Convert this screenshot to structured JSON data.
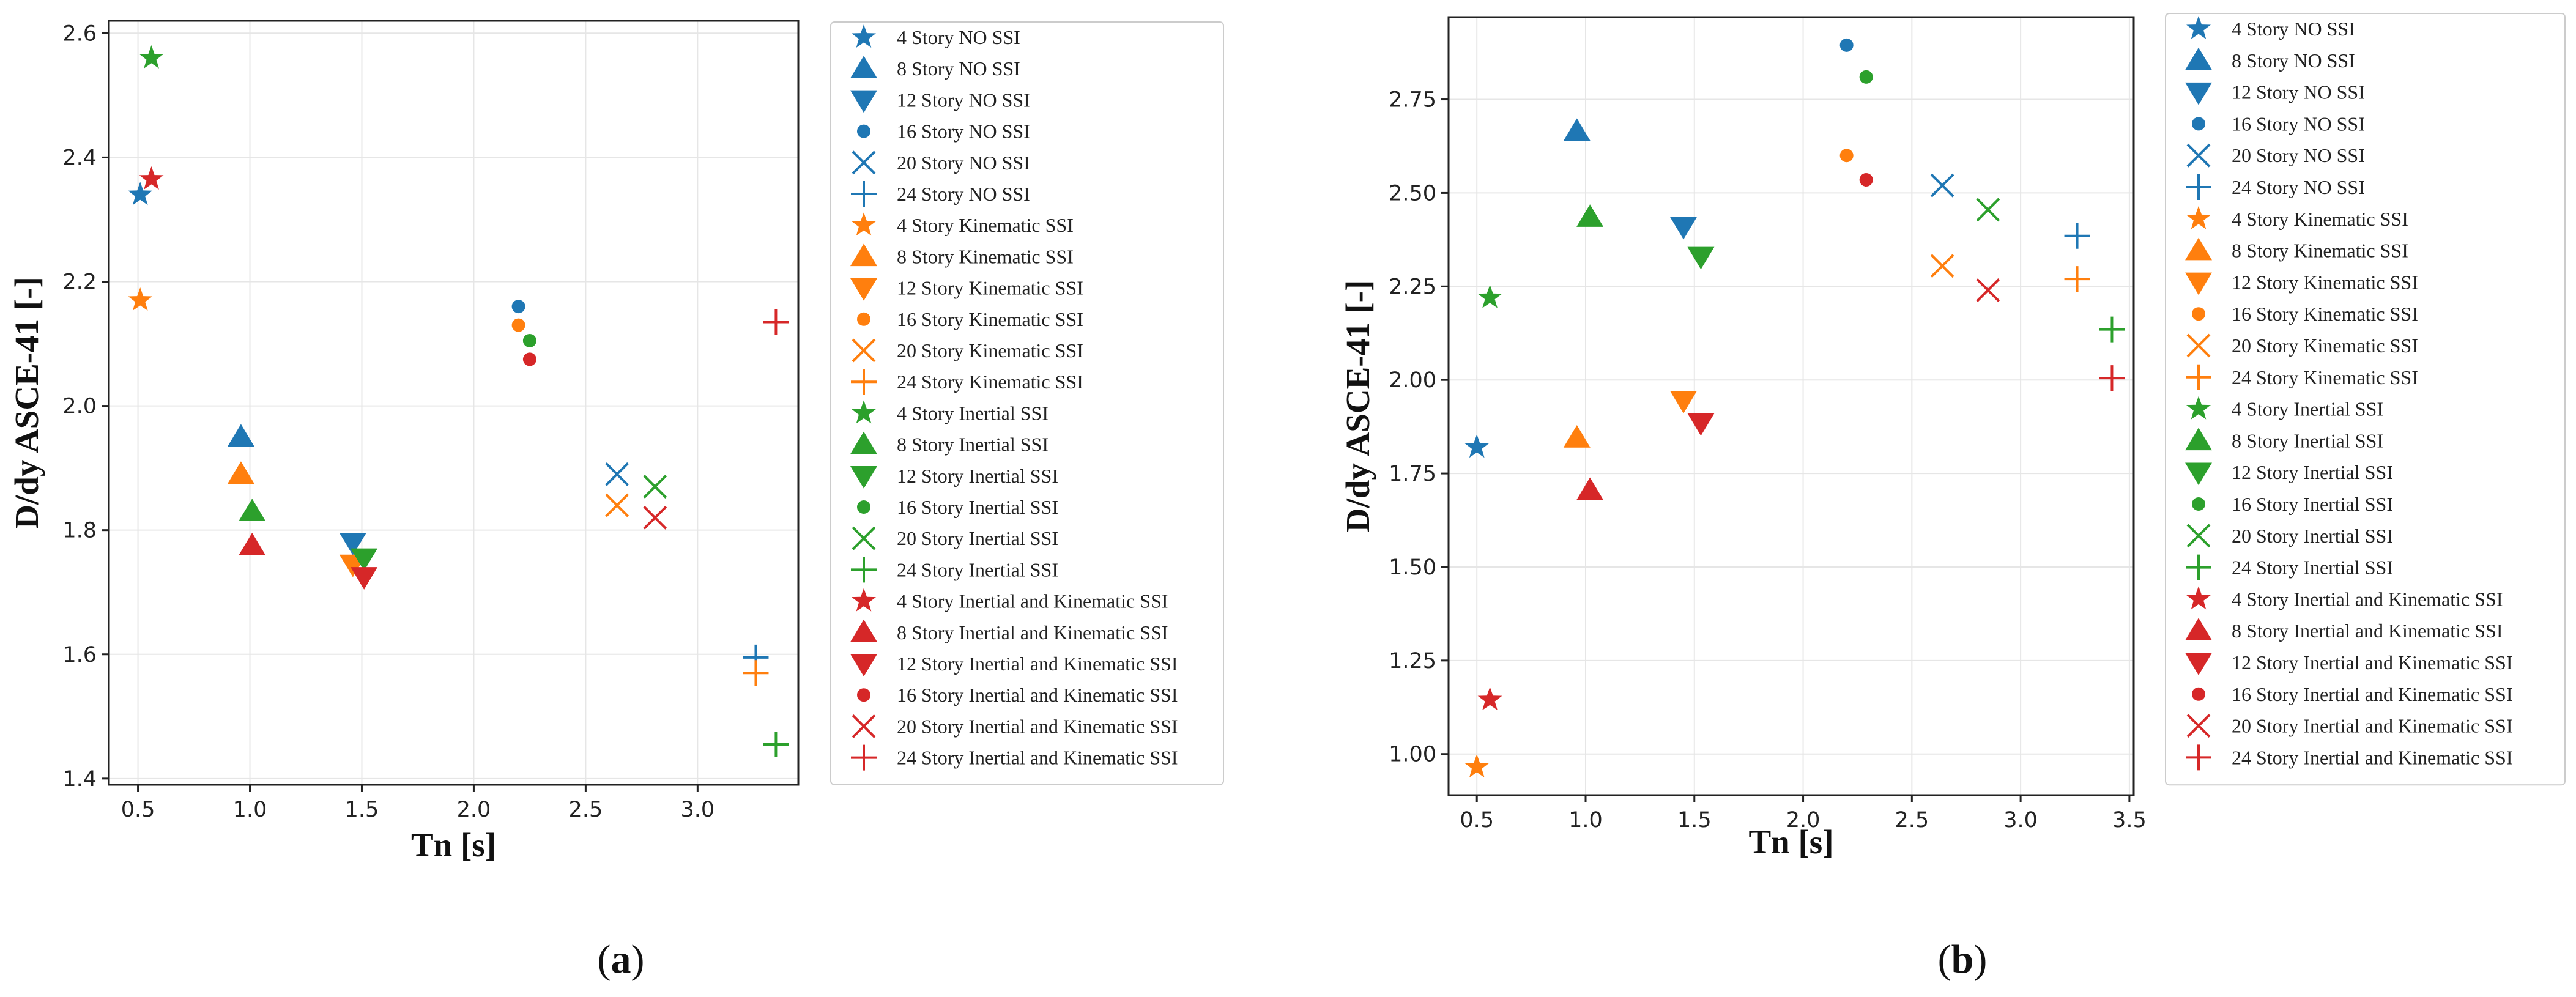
{
  "colors": {
    "no_ssi": "#1f77b4",
    "kinematic_ssi": "#ff7f0e",
    "inertial_ssi": "#2ca02c",
    "inertial_kinematic_ssi": "#d62728"
  },
  "chart_data": [
    {
      "type": "scatter",
      "panel": "a",
      "caption_label": "a",
      "xlabel": "Tn [s]",
      "ylabel": "D/dy ASCE-41 [-]",
      "xlim": [
        0.37,
        3.45
      ],
      "ylim": [
        1.39,
        2.62
      ],
      "xticks": [
        "0.5",
        "1.0",
        "1.5",
        "2.0",
        "2.5",
        "3.0"
      ],
      "yticks": [
        "1.4",
        "1.6",
        "1.8",
        "2.0",
        "2.2",
        "2.4",
        "2.6"
      ],
      "grid": true,
      "legend_position": "outside-right",
      "groups": [
        {
          "name": "NO SSI",
          "color_key": "no_ssi",
          "points": [
            [
              0.51,
              2.34
            ],
            [
              0.96,
              1.95
            ],
            [
              1.46,
              1.78
            ],
            [
              2.2,
              2.16
            ],
            [
              2.64,
              1.89
            ],
            [
              3.26,
              1.595
            ]
          ]
        },
        {
          "name": "Kinematic SSI",
          "color_key": "kinematic_ssi",
          "points": [
            [
              0.51,
              2.17
            ],
            [
              0.96,
              1.89
            ],
            [
              1.46,
              1.745
            ],
            [
              2.2,
              2.13
            ],
            [
              2.64,
              1.84
            ],
            [
              3.26,
              1.57
            ]
          ]
        },
        {
          "name": "Inertial SSI",
          "color_key": "inertial_ssi",
          "points": [
            [
              0.56,
              2.56
            ],
            [
              1.01,
              1.83
            ],
            [
              1.51,
              1.755
            ],
            [
              2.25,
              2.105
            ],
            [
              2.81,
              1.87
            ],
            [
              3.35,
              1.455
            ]
          ]
        },
        {
          "name": "Inertial and Kinematic SSI",
          "color_key": "inertial_kinematic_ssi",
          "points": [
            [
              0.56,
              2.365
            ],
            [
              1.01,
              1.775
            ],
            [
              1.51,
              1.725
            ],
            [
              2.25,
              2.075
            ],
            [
              2.81,
              1.82
            ],
            [
              3.35,
              2.135
            ]
          ]
        }
      ]
    },
    {
      "type": "scatter",
      "panel": "b",
      "caption_label": "b",
      "xlabel": "Tn [s]",
      "ylabel": "D/dy ASCE-41 [-]",
      "xlim": [
        0.37,
        3.52
      ],
      "ylim": [
        0.89,
        2.97
      ],
      "xticks": [
        "0.5",
        "1.0",
        "1.5",
        "2.0",
        "2.5",
        "3.0",
        "3.5"
      ],
      "yticks": [
        "1.00",
        "1.25",
        "1.50",
        "1.75",
        "2.00",
        "2.25",
        "2.50",
        "2.75"
      ],
      "grid": true,
      "legend_position": "outside-right",
      "groups": [
        {
          "name": "NO SSI",
          "color_key": "no_ssi",
          "points": [
            [
              0.5,
              1.82
            ],
            [
              0.96,
              2.665
            ],
            [
              1.45,
              2.41
            ],
            [
              2.2,
              2.895
            ],
            [
              2.64,
              2.52
            ],
            [
              3.26,
              2.385
            ]
          ]
        },
        {
          "name": "Kinematic SSI",
          "color_key": "kinematic_ssi",
          "points": [
            [
              0.5,
              0.965
            ],
            [
              0.96,
              1.845
            ],
            [
              1.45,
              1.945
            ],
            [
              2.2,
              2.6
            ],
            [
              2.64,
              2.305
            ],
            [
              3.26,
              2.27
            ]
          ]
        },
        {
          "name": "Inertial SSI",
          "color_key": "inertial_ssi",
          "points": [
            [
              0.56,
              2.22
            ],
            [
              1.02,
              2.435
            ],
            [
              1.53,
              2.33
            ],
            [
              2.29,
              2.81
            ],
            [
              2.85,
              2.455
            ],
            [
              3.42,
              2.135
            ]
          ]
        },
        {
          "name": "Inertial and Kinematic SSI",
          "color_key": "inertial_kinematic_ssi",
          "points": [
            [
              0.56,
              1.145
            ],
            [
              1.02,
              1.705
            ],
            [
              1.53,
              1.885
            ],
            [
              2.29,
              2.535
            ],
            [
              2.85,
              2.24
            ],
            [
              3.42,
              2.005
            ]
          ]
        }
      ]
    }
  ],
  "stories": [
    "4",
    "8",
    "12",
    "16",
    "20",
    "24"
  ],
  "markers": [
    "star",
    "triangle-up",
    "triangle-down",
    "circle",
    "x",
    "plus"
  ],
  "legend": [
    "4 Story NO SSI",
    "8 Story NO SSI",
    "12 Story NO SSI",
    "16 Story NO SSI",
    "20 Story NO SSI",
    "24 Story NO SSI",
    "4 Story Kinematic SSI",
    "8 Story Kinematic SSI",
    "12 Story Kinematic SSI",
    "16 Story Kinematic SSI",
    "20 Story Kinematic SSI",
    "24 Story Kinematic SSI",
    "4 Story Inertial SSI",
    "8 Story Inertial SSI",
    "12 Story Inertial SSI",
    "16 Story Inertial SSI",
    "20 Story Inertial SSI",
    "24 Story Inertial SSI",
    "4 Story Inertial and Kinematic SSI",
    "8 Story Inertial and Kinematic SSI",
    "12 Story Inertial and Kinematic SSI",
    "16 Story Inertial and Kinematic SSI",
    "20 Story Inertial and Kinematic SSI",
    "24 Story Inertial and Kinematic SSI"
  ]
}
